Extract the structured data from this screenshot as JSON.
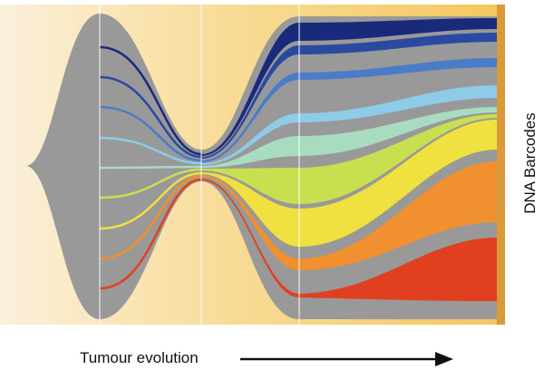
{
  "labels": {
    "x_axis": "Tumour evolution",
    "y_axis": "DNA Barcodes"
  }
}
